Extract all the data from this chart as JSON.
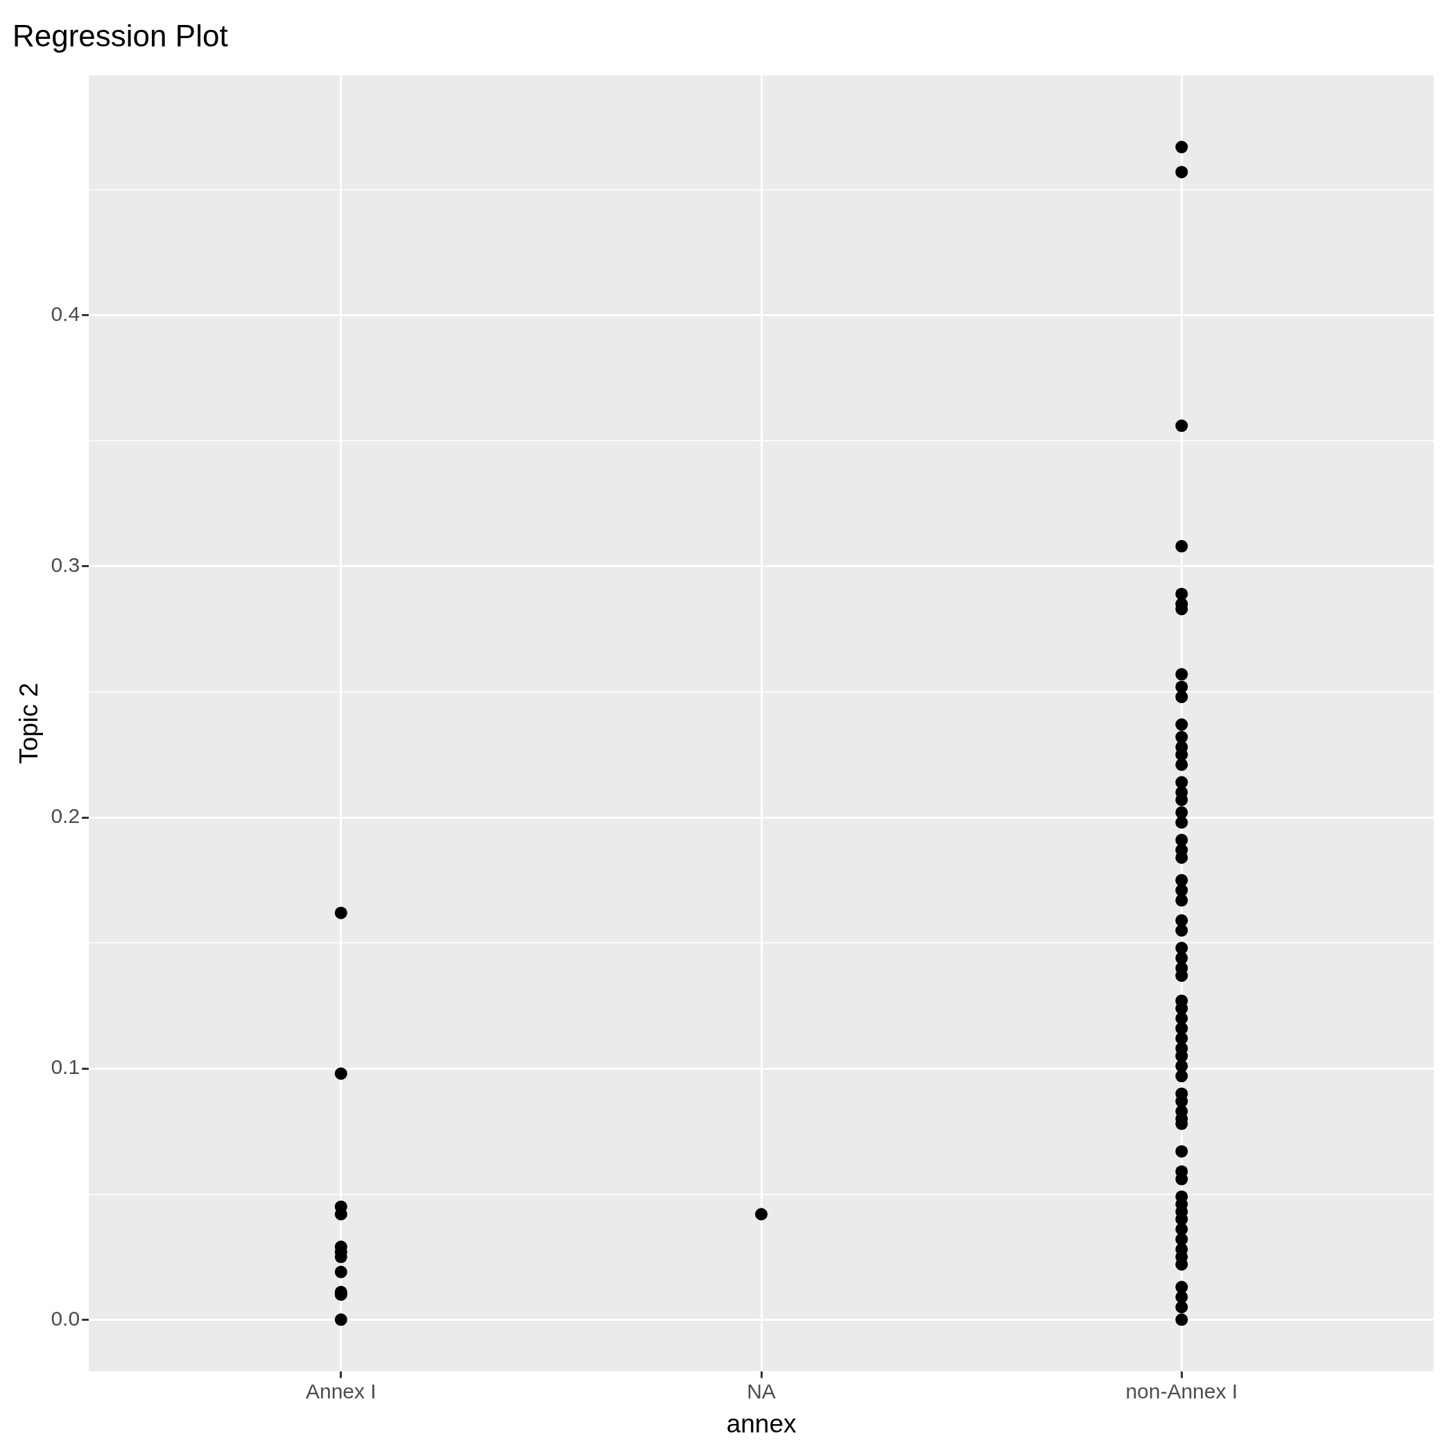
{
  "chart_data": {
    "type": "scatter",
    "title": "Regression Plot",
    "xlabel": "annex",
    "ylabel": "Topic 2",
    "categories": [
      "Annex I",
      "NA",
      "non-Annex I"
    ],
    "series": [
      {
        "color": "#000000",
        "x": [
          "Annex I",
          "Annex I",
          "Annex I",
          "Annex I",
          "Annex I",
          "Annex I",
          "Annex I",
          "Annex I",
          "Annex I",
          "Annex I",
          "Annex I",
          "NA",
          "non-Annex I",
          "non-Annex I",
          "non-Annex I",
          "non-Annex I",
          "non-Annex I",
          "non-Annex I",
          "non-Annex I",
          "non-Annex I",
          "non-Annex I",
          "non-Annex I",
          "non-Annex I",
          "non-Annex I",
          "non-Annex I",
          "non-Annex I",
          "non-Annex I",
          "non-Annex I",
          "non-Annex I",
          "non-Annex I",
          "non-Annex I",
          "non-Annex I",
          "non-Annex I",
          "non-Annex I",
          "non-Annex I",
          "non-Annex I",
          "non-Annex I",
          "non-Annex I",
          "non-Annex I",
          "non-Annex I",
          "non-Annex I",
          "non-Annex I",
          "non-Annex I",
          "non-Annex I",
          "non-Annex I",
          "non-Annex I",
          "non-Annex I",
          "non-Annex I",
          "non-Annex I",
          "non-Annex I",
          "non-Annex I",
          "non-Annex I",
          "non-Annex I",
          "non-Annex I",
          "non-Annex I",
          "non-Annex I",
          "non-Annex I",
          "non-Annex I",
          "non-Annex I",
          "non-Annex I",
          "non-Annex I",
          "non-Annex I",
          "non-Annex I",
          "non-Annex I",
          "non-Annex I",
          "non-Annex I",
          "non-Annex I",
          "non-Annex I",
          "non-Annex I",
          "non-Annex I",
          "non-Annex I",
          "non-Annex I",
          "non-Annex I",
          "non-Annex I"
        ],
        "values": [
          0.162,
          0.098,
          0.045,
          0.042,
          0.029,
          0.027,
          0.025,
          0.019,
          0.011,
          0.01,
          0.0,
          0.042,
          0.467,
          0.457,
          0.356,
          0.308,
          0.289,
          0.285,
          0.283,
          0.257,
          0.252,
          0.248,
          0.237,
          0.232,
          0.228,
          0.225,
          0.221,
          0.214,
          0.21,
          0.207,
          0.202,
          0.198,
          0.191,
          0.187,
          0.184,
          0.175,
          0.171,
          0.167,
          0.159,
          0.155,
          0.148,
          0.144,
          0.14,
          0.137,
          0.127,
          0.124,
          0.12,
          0.116,
          0.112,
          0.108,
          0.105,
          0.101,
          0.097,
          0.09,
          0.087,
          0.083,
          0.08,
          0.078,
          0.067,
          0.059,
          0.056,
          0.049,
          0.046,
          0.043,
          0.04,
          0.036,
          0.032,
          0.028,
          0.025,
          0.022,
          0.013,
          0.009,
          0.005,
          0.0
        ]
      }
    ],
    "ylim": [
      -0.0205,
      0.4955
    ],
    "yticks": [
      {
        "value": 0,
        "label": "0.0"
      },
      0.1,
      0.2,
      0.3,
      0.4,
      {
        "value": 0.05,
        "label": null
      },
      {
        "value": 0.15,
        "label": null
      },
      {
        "value": 0.25,
        "label": null
      },
      {
        "value": 0.35,
        "label": null
      },
      {
        "value": 0.45,
        "label": null
      }
    ],
    "grid": true,
    "legend": false,
    "marker": "circle"
  }
}
